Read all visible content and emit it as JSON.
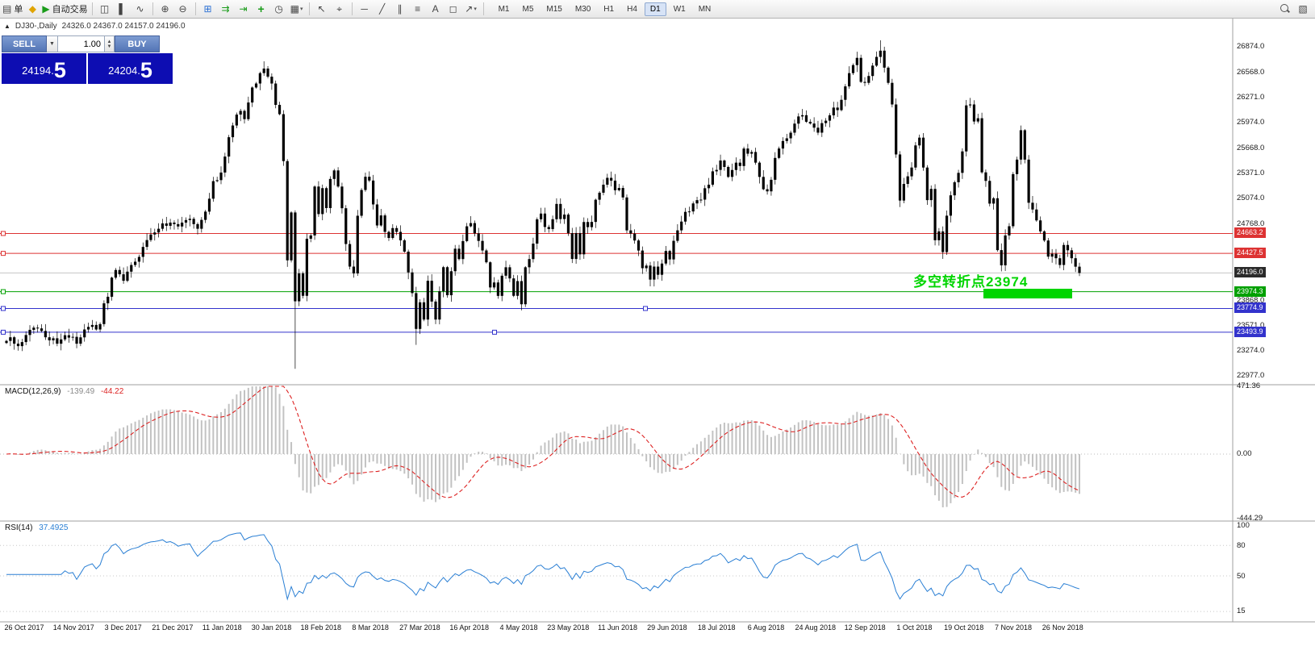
{
  "toolbar": {
    "items": [
      {
        "type": "button",
        "name": "new-order-button",
        "glyph": "▤",
        "label": "单"
      },
      {
        "type": "icon",
        "name": "new-chart-icon",
        "glyph": "◆",
        "color": "#e0a400"
      },
      {
        "type": "button",
        "name": "autotrade-button",
        "glyph": "▶",
        "glyph_color": "#1a9c1a",
        "label": "自动交易"
      },
      {
        "type": "sep"
      },
      {
        "type": "icon",
        "name": "bar-chart-icon",
        "glyph": "◫"
      },
      {
        "type": "icon",
        "name": "candlestick-chart-icon",
        "glyph": "▌"
      },
      {
        "type": "icon",
        "name": "line-chart-icon",
        "glyph": "∿"
      },
      {
        "type": "sep"
      },
      {
        "type": "icon",
        "name": "zoom-in-icon",
        "glyph": "⊕"
      },
      {
        "type": "icon",
        "name": "zoom-out-icon",
        "glyph": "⊖"
      },
      {
        "type": "sep"
      },
      {
        "type": "icon",
        "name": "tile-windows-icon",
        "glyph": "⊞",
        "color": "#2a6fd4"
      },
      {
        "type": "icon",
        "name": "auto-scroll-icon",
        "glyph": "⇉",
        "color": "#1a9c1a"
      },
      {
        "type": "icon",
        "name": "chart-shift-icon",
        "glyph": "⇥",
        "color": "#1a9c1a"
      },
      {
        "type": "icon",
        "name": "add-indicator-icon",
        "glyph": "+",
        "color": "#1a9c1a"
      },
      {
        "type": "icon",
        "name": "period-icon",
        "glyph": "◷"
      },
      {
        "type": "icon",
        "name": "templates-icon",
        "glyph": "▦",
        "caret": true
      },
      {
        "type": "sep"
      },
      {
        "type": "icon",
        "name": "cursor-icon",
        "glyph": "↖"
      },
      {
        "type": "icon",
        "name": "crosshair-icon",
        "glyph": "⌖"
      },
      {
        "type": "sep"
      },
      {
        "type": "icon",
        "name": "horizontal-line-icon",
        "glyph": "─"
      },
      {
        "type": "icon",
        "name": "trendline-icon",
        "glyph": "╱"
      },
      {
        "type": "icon",
        "name": "channel-icon",
        "glyph": "∥"
      },
      {
        "type": "icon",
        "name": "fibonacci-icon",
        "glyph": "≡"
      },
      {
        "type": "icon",
        "name": "text-label-icon",
        "glyph": "A"
      },
      {
        "type": "icon",
        "name": "shapes-icon",
        "glyph": "◻"
      },
      {
        "type": "icon",
        "name": "arrows-icon",
        "glyph": "↗",
        "caret": true
      },
      {
        "type": "sep"
      }
    ],
    "timeframes": [
      "M1",
      "M5",
      "M15",
      "M30",
      "H1",
      "H4",
      "D1",
      "W1",
      "MN"
    ],
    "active_timeframe": "D1",
    "right_icons": [
      {
        "name": "search-icon",
        "glyph": "mag"
      },
      {
        "name": "market-watch-panel-icon",
        "glyph": "▧"
      }
    ]
  },
  "chart": {
    "info_symbol": "DJ30-,Daily",
    "info_ohlc": "24326.0 24367.0 24157.0 24196.0",
    "annotation": {
      "text": "多空转折点23974",
      "color": "#00d500"
    }
  },
  "trade": {
    "sell_label": "SELL",
    "buy_label": "BUY",
    "volume": "1.00",
    "sell_price": "24194.5",
    "buy_price": "24204.5",
    "sell_price_main": "24194.",
    "sell_price_big": "5",
    "buy_price_main": "24204.",
    "buy_price_big": "5"
  },
  "macd": {
    "title": "MACD(12,26,9)",
    "value_main": "-139.49",
    "value_signal": "-44.22",
    "axis": [
      "471.36",
      "0.00",
      "-444.29"
    ]
  },
  "rsi": {
    "title": "RSI(14)",
    "value": "37.4925",
    "axis": [
      "100",
      "80",
      "50",
      "15"
    ],
    "guide_levels": [
      80,
      50,
      15
    ]
  },
  "chart_data": {
    "type": "candlestick",
    "symbol": "DJ30-",
    "timeframe": "Daily",
    "ohlc_info": {
      "open": "24326.0",
      "high": "24367.0",
      "low": "24157.0",
      "close": "24196.0"
    },
    "current_price": "24196.0",
    "y_axis": {
      "min": 22977.0,
      "max": 26874.0,
      "ticks": [
        "26874.0",
        "26568.0",
        "26271.0",
        "25974.0",
        "25668.0",
        "25371.0",
        "25074.0",
        "24768.0",
        "23868.0",
        "23571.0",
        "23274.0",
        "22977.0"
      ]
    },
    "levels": [
      {
        "label": "24663.2",
        "price": 24663.2,
        "color": "#dd3333",
        "handles": [
          4
        ]
      },
      {
        "label": "24427.5",
        "price": 24427.5,
        "color": "#dd3333",
        "handles": [
          4
        ]
      },
      {
        "label": "24196.0",
        "price": 24196.0,
        "color": "#c4c4c4",
        "tag_color": "#2b2b2b",
        "kind": "current-price",
        "handles": []
      },
      {
        "label": "23974.3",
        "price": 23974.3,
        "color": "#00a000",
        "handles": [
          4
        ]
      },
      {
        "label": "23774.9",
        "price": 23774.9,
        "color": "#3333cc",
        "handles": [
          4,
          800
        ]
      },
      {
        "label": "23493.9",
        "price": 23493.9,
        "color": "#3333cc",
        "handles": [
          4,
          613
        ]
      }
    ],
    "x_labels": [
      "26 Oct 2017",
      "14 Nov 2017",
      "3 Dec 2017",
      "21 Dec 2017",
      "11 Jan 2018",
      "30 Jan 2018",
      "18 Feb 2018",
      "8 Mar 2018",
      "27 Mar 2018",
      "16 Apr 2018",
      "4 May 2018",
      "23 May 2018",
      "11 Jun 2018",
      "29 Jun 2018",
      "18 Jul 2018",
      "6 Aug 2018",
      "24 Aug 2018",
      "12 Sep 2018",
      "1 Oct 2018",
      "19 Oct 2018",
      "7 Nov 2018",
      "26 Nov 2018"
    ],
    "closes": [
      23391,
      23434,
      23358,
      23329,
      23377,
      23461,
      23522,
      23548,
      23539,
      23509,
      23434,
      23398,
      23422,
      23358,
      23409,
      23458,
      23430,
      23439,
      23358,
      23433,
      23526,
      23557,
      23580,
      23526,
      23590,
      23836,
      23914,
      24140,
      24231,
      24180,
      24103,
      24211,
      24290,
      24329,
      24386,
      24504,
      24585,
      24651,
      24675,
      24719,
      24782,
      24754,
      24792,
      24774,
      24746,
      24792,
      24822,
      24837,
      24774,
      24719,
      24824,
      24922,
      25075,
      25283,
      25295,
      25385,
      25574,
      25803,
      25942,
      26071,
      26115,
      26017,
      26214,
      26392,
      26439,
      26562,
      26616,
      26520,
      26439,
      26186,
      26076,
      25520,
      24345,
      24912,
      23860,
      24190,
      23925,
      24601,
      24640,
      25219,
      24893,
      25200,
      24964,
      25309,
      25410,
      25219,
      24962,
      24538,
      24271,
      24190,
      24873,
      25178,
      25335,
      25290,
      25007,
      24758,
      24877,
      24682,
      24610,
      24727,
      24682,
      24582,
      24448,
      24202,
      23957,
      23533,
      23848,
      23644,
      24103,
      23857,
      23644,
      23979,
      24264,
      23932,
      24216,
      24483,
      24360,
      24573,
      24748,
      24786,
      24664,
      24575,
      24462,
      24322,
      24024,
      24083,
      23924,
      24163,
      24263,
      24131,
      23925,
      24099,
      23825,
      24263,
      24360,
      24543,
      24831,
      24899,
      24740,
      24715,
      24832,
      25013,
      24834,
      24887,
      24667,
      24361,
      24668,
      24416,
      24799,
      24738,
      24800,
      25063,
      25146,
      25241,
      25322,
      25289,
      25175,
      25202,
      25090,
      24700,
      24662,
      24580,
      24461,
      24252,
      24283,
      24117,
      24271,
      24174,
      24307,
      24456,
      24356,
      24576,
      24700,
      24804,
      24919,
      24924,
      25019,
      25058,
      25064,
      25199,
      25241,
      25399,
      25416,
      25527,
      25451,
      25333,
      25415,
      25502,
      25462,
      25669,
      25608,
      25628,
      25502,
      25333,
      25187,
      25162,
      25299,
      25558,
      25669,
      25758,
      25790,
      25857,
      25964,
      26049,
      26064,
      25986,
      25965,
      25916,
      25857,
      25970,
      25999,
      26062,
      26154,
      26124,
      26246,
      26405,
      26562,
      26657,
      26743,
      26458,
      26447,
      26528,
      26651,
      26754,
      26828,
      26627,
      26447,
      26191,
      25599,
      25053,
      25250,
      25340,
      25444,
      25706,
      25798,
      25444,
      25058,
      25191,
      24583,
      24688,
      24443,
      24874,
      25115,
      25270,
      25381,
      25635,
      26180,
      26191,
      25989,
      26028,
      25387,
      25286,
      25017,
      25080,
      24466,
      24286,
      24640,
      24749,
      25366,
      25538,
      25886,
      25538,
      25027,
      24947,
      24818,
      24688,
      24580,
      24389,
      24423,
      24370,
      24290,
      24527,
      24464,
      24370,
      24270,
      24196
    ],
    "wick_overrides": {
      "highs": {
        "66": 26702,
        "224": 26951
      },
      "lows": {
        "74": 23060,
        "105": 23344
      }
    },
    "indicators": [
      {
        "name": "MACD",
        "params": "12,26,9",
        "values": [
          "-139.49",
          "-44.22"
        ],
        "axis": [
          "471.36",
          "0.00",
          "-444.29"
        ]
      },
      {
        "name": "RSI",
        "params": "14",
        "value": "37.4925",
        "axis": [
          "100",
          "80",
          "50",
          "15"
        ]
      }
    ]
  }
}
